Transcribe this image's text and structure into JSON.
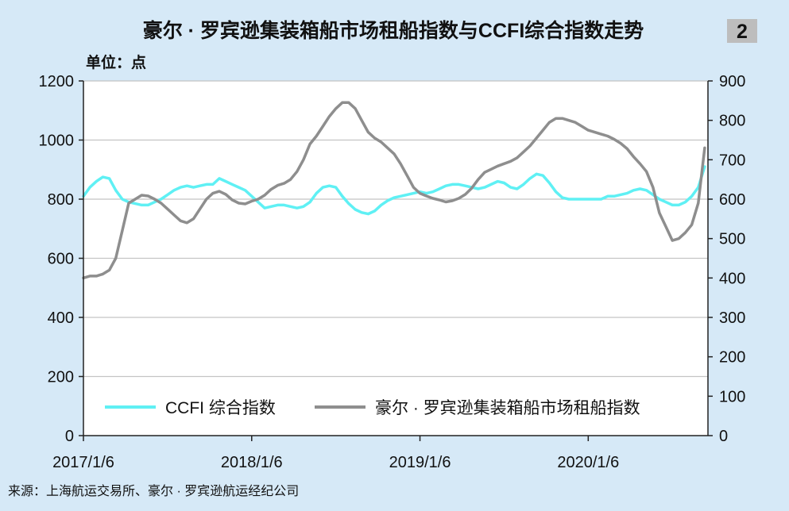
{
  "chart_data": {
    "type": "line",
    "title": "豪尔 · 罗宾逊集装箱船市场租船指数与CCFI综合指数走势",
    "badge": "2",
    "unit_label": "单位：点",
    "source": "来源：上海航运交易所、豪尔 · 罗宾逊航运经纪公司",
    "x_ticks": [
      "2017/1/6",
      "2018/1/6",
      "2019/1/6",
      "2020/1/6"
    ],
    "x_range": [
      0,
      193
    ],
    "y_left": {
      "ylim": [
        0,
        1200
      ],
      "ticks": [
        0,
        200,
        400,
        600,
        800,
        1000,
        1200
      ]
    },
    "y_right": {
      "ylim": [
        0,
        900
      ],
      "ticks": [
        0,
        100,
        200,
        300,
        400,
        500,
        600,
        700,
        800,
        900
      ]
    },
    "grid": true,
    "legend_position": "bottom",
    "series": [
      {
        "name": "CCFI 综合指数",
        "axis": "left",
        "color": "#5ff0f4",
        "x": [
          0,
          2,
          4,
          6,
          8,
          10,
          12,
          14,
          16,
          18,
          20,
          22,
          24,
          26,
          28,
          30,
          32,
          34,
          36,
          38,
          40,
          42,
          44,
          46,
          48,
          50,
          52,
          54,
          56,
          58,
          60,
          62,
          64,
          66,
          68,
          70,
          72,
          74,
          76,
          78,
          80,
          82,
          84,
          86,
          88,
          90,
          92,
          94,
          96,
          98,
          100,
          102,
          104,
          106,
          108,
          110,
          112,
          114,
          116,
          118,
          120,
          122,
          124,
          126,
          128,
          130,
          132,
          134,
          136,
          138,
          140,
          142,
          144,
          146,
          148,
          150,
          152,
          154,
          156,
          158,
          160,
          162,
          164,
          166,
          168,
          170,
          172,
          174,
          176,
          178,
          180,
          182,
          184,
          186,
          188,
          190,
          192
        ],
        "values": [
          810,
          840,
          860,
          875,
          870,
          830,
          800,
          790,
          785,
          780,
          780,
          790,
          800,
          815,
          830,
          840,
          845,
          840,
          845,
          850,
          850,
          870,
          860,
          850,
          840,
          830,
          810,
          790,
          770,
          775,
          780,
          780,
          775,
          770,
          775,
          790,
          820,
          840,
          845,
          840,
          810,
          785,
          765,
          755,
          750,
          760,
          780,
          795,
          805,
          810,
          815,
          820,
          825,
          820,
          825,
          835,
          845,
          850,
          850,
          845,
          840,
          835,
          840,
          850,
          860,
          855,
          840,
          835,
          850,
          870,
          885,
          880,
          855,
          825,
          805,
          800,
          800,
          800,
          800,
          800,
          800,
          810,
          810,
          815,
          820,
          830,
          835,
          830,
          815,
          800,
          790,
          780,
          780,
          790,
          810,
          840,
          910
        ],
        "values_x_note": null
      },
      {
        "name": "豪尔 · 罗宾逊集装箱船市场租船指数",
        "axis": "right",
        "color": "#8e8e8e",
        "x": [
          0,
          2,
          4,
          6,
          8,
          10,
          12,
          14,
          16,
          18,
          20,
          22,
          24,
          26,
          28,
          30,
          32,
          34,
          36,
          38,
          40,
          42,
          44,
          46,
          48,
          50,
          52,
          54,
          56,
          58,
          60,
          62,
          64,
          66,
          68,
          70,
          72,
          74,
          76,
          78,
          80,
          82,
          84,
          86,
          88,
          90,
          92,
          94,
          96,
          98,
          100,
          102,
          104,
          106,
          108,
          110,
          112,
          114,
          116,
          118,
          120,
          122,
          124,
          126,
          128,
          130,
          132,
          134,
          136,
          138,
          140,
          142,
          144,
          146,
          148,
          150,
          152,
          154,
          156,
          158,
          160,
          162,
          164,
          166,
          168,
          170,
          172,
          174,
          176,
          178,
          180,
          182,
          184,
          186,
          188,
          190,
          192
        ],
        "values": [
          400,
          405,
          405,
          410,
          420,
          450,
          520,
          590,
          600,
          610,
          608,
          600,
          590,
          575,
          560,
          545,
          540,
          550,
          575,
          600,
          615,
          620,
          612,
          598,
          590,
          588,
          595,
          600,
          610,
          625,
          635,
          640,
          650,
          670,
          700,
          740,
          760,
          785,
          810,
          830,
          845,
          845,
          830,
          800,
          770,
          755,
          745,
          730,
          715,
          690,
          660,
          630,
          615,
          608,
          602,
          598,
          593,
          596,
          602,
          612,
          628,
          650,
          668,
          676,
          684,
          690,
          696,
          705,
          720,
          735,
          755,
          775,
          795,
          805,
          805,
          800,
          795,
          785,
          775,
          770,
          765,
          760,
          752,
          742,
          728,
          708,
          690,
          670,
          630,
          565,
          530,
          495,
          500,
          515,
          535,
          590,
          730
        ]
      }
    ]
  }
}
